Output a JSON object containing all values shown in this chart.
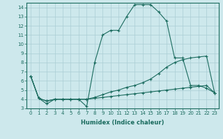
{
  "xlabel": "Humidex (Indice chaleur)",
  "background_color": "#cde8ec",
  "line_color": "#1a6b5e",
  "grid_color": "#aacdd4",
  "xlim": [
    -0.5,
    23.5
  ],
  "ylim": [
    3,
    14.5
  ],
  "xticks": [
    0,
    1,
    2,
    3,
    4,
    5,
    6,
    7,
    8,
    9,
    10,
    11,
    12,
    13,
    14,
    15,
    16,
    17,
    18,
    19,
    20,
    21,
    22,
    23
  ],
  "yticks": [
    3,
    4,
    5,
    6,
    7,
    8,
    9,
    10,
    11,
    12,
    13,
    14
  ],
  "line1_x": [
    0,
    1,
    2,
    3,
    4,
    5,
    6,
    7,
    8,
    9,
    10,
    11,
    12,
    13,
    14,
    15,
    16,
    17,
    18,
    19,
    20,
    21,
    22,
    23
  ],
  "line1_y": [
    6.5,
    4.1,
    3.5,
    4.0,
    4.0,
    4.0,
    4.0,
    3.2,
    8.0,
    11.0,
    11.5,
    11.5,
    13.0,
    14.3,
    14.3,
    14.3,
    13.5,
    12.5,
    8.5,
    8.5,
    5.5,
    5.5,
    5.2,
    4.7
  ],
  "line2_x": [
    0,
    1,
    2,
    3,
    4,
    5,
    6,
    7,
    8,
    9,
    10,
    11,
    12,
    13,
    14,
    15,
    16,
    17,
    18,
    19,
    20,
    21,
    22,
    23
  ],
  "line2_y": [
    6.5,
    4.1,
    3.8,
    4.0,
    4.0,
    4.0,
    4.0,
    4.0,
    4.2,
    4.5,
    4.8,
    5.0,
    5.3,
    5.5,
    5.8,
    6.2,
    6.8,
    7.5,
    8.0,
    8.3,
    8.5,
    8.6,
    8.7,
    4.7
  ],
  "line3_x": [
    0,
    1,
    2,
    3,
    4,
    5,
    6,
    7,
    8,
    9,
    10,
    11,
    12,
    13,
    14,
    15,
    16,
    17,
    18,
    19,
    20,
    21,
    22,
    23
  ],
  "line3_y": [
    6.5,
    4.1,
    3.8,
    4.0,
    4.0,
    4.0,
    4.0,
    4.0,
    4.1,
    4.2,
    4.3,
    4.4,
    4.5,
    4.6,
    4.7,
    4.8,
    4.9,
    5.0,
    5.1,
    5.2,
    5.3,
    5.4,
    5.5,
    4.7
  ]
}
